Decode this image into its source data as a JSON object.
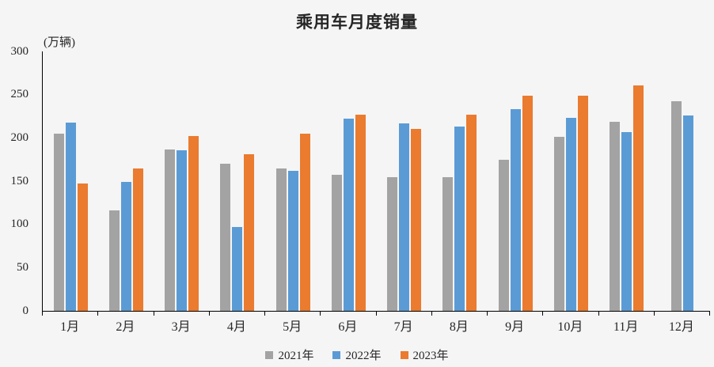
{
  "title": "乘用车月度销量",
  "unit_label": "(万辆)",
  "colors": {
    "series_2021": "#a3a3a3",
    "series_2022": "#5b9bd5",
    "series_2023": "#ea7b2f",
    "axis": "#000000",
    "background": "#f5f5f5",
    "text": "#262626"
  },
  "legend": {
    "items": [
      "2021年",
      "2022年",
      "2023年"
    ]
  },
  "chart_data": {
    "type": "bar",
    "title": "乘用车月度销量",
    "ylabel": "(万辆)",
    "categories": [
      "1月",
      "2月",
      "3月",
      "4月",
      "5月",
      "6月",
      "7月",
      "8月",
      "9月",
      "10月",
      "11月",
      "12月"
    ],
    "series": [
      {
        "name": "2021年",
        "color": "#a3a3a3",
        "values": [
          205,
          116,
          187,
          170,
          165,
          157,
          155,
          155,
          175,
          201,
          219,
          242
        ]
      },
      {
        "name": "2022年",
        "color": "#5b9bd5",
        "values": [
          218,
          149,
          186,
          97,
          162,
          222,
          217,
          213,
          233,
          223,
          207,
          226
        ]
      },
      {
        "name": "2023年",
        "color": "#ea7b2f",
        "values": [
          147,
          165,
          202,
          181,
          205,
          227,
          210,
          227,
          249,
          249,
          261,
          null
        ]
      }
    ],
    "ylim": [
      0,
      300
    ],
    "yticks": [
      0,
      50,
      100,
      150,
      200,
      250,
      300
    ],
    "grid": false,
    "legend_position": "bottom"
  }
}
